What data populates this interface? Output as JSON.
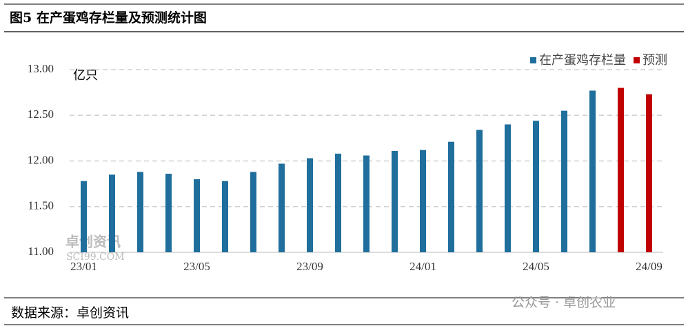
{
  "chart_data": {
    "type": "bar",
    "title": "图5 在产蛋鸡存栏量及预测统计图",
    "y_unit": "亿只",
    "categories": [
      "23/01",
      null,
      null,
      null,
      "23/05",
      null,
      null,
      null,
      "23/09",
      null,
      null,
      null,
      "24/01",
      null,
      null,
      null,
      "24/05",
      null,
      null,
      null,
      "24/09"
    ],
    "series": [
      {
        "name": "在产蛋鸡存栏量",
        "color": "#1f6e9c",
        "values": [
          11.78,
          11.85,
          11.88,
          11.86,
          11.8,
          11.78,
          11.88,
          11.97,
          12.03,
          12.08,
          12.06,
          12.11,
          12.12,
          12.21,
          12.34,
          12.4,
          12.44,
          12.55,
          12.77,
          null,
          null
        ]
      },
      {
        "name": "预测",
        "color": "#c00000",
        "values": [
          null,
          null,
          null,
          null,
          null,
          null,
          null,
          null,
          null,
          null,
          null,
          null,
          null,
          null,
          null,
          null,
          null,
          null,
          null,
          12.8,
          12.73
        ]
      }
    ],
    "ylim": [
      11,
      13
    ],
    "yticks": [
      {
        "value": 11,
        "label": "11.00"
      },
      {
        "value": 11.5,
        "label": "11.50"
      },
      {
        "value": 12,
        "label": "12.00"
      },
      {
        "value": 12.5,
        "label": "12.50"
      },
      {
        "value": 13,
        "label": "13.00"
      }
    ],
    "grid": true,
    "legend": "top-right"
  },
  "footer": {
    "source": "数据来源：卓创资讯",
    "watermark": "公众号 · 卓创农业",
    "logo": "卓创资讯",
    "logo_url": "SCI99.COM"
  }
}
